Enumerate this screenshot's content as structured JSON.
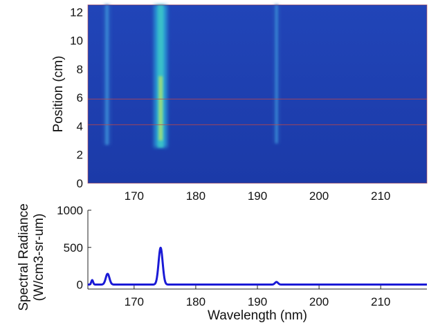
{
  "chart_data": [
    {
      "type": "heatmap",
      "ylabel": "Position (cm)",
      "xlim": [
        162.5,
        217.5
      ],
      "ylim": [
        0,
        12.5
      ],
      "xticks": [
        170,
        180,
        190,
        200,
        210
      ],
      "yticks": [
        0,
        2,
        4,
        6,
        8,
        10,
        12
      ],
      "colors": {
        "background": "#1f3fb0",
        "marker_lines": "#c04848"
      },
      "marker_lines_y": [
        4.1,
        5.9
      ],
      "bright_lines": [
        {
          "x": 165.6,
          "y_from": 2.7,
          "y_to": 12.5,
          "intensity": 0.3
        },
        {
          "x": 174.3,
          "y_from": 2.5,
          "y_to": 12.5,
          "intensity": 1.0
        },
        {
          "x": 193.1,
          "y_from": 2.8,
          "y_to": 12.5,
          "intensity": 0.15
        }
      ]
    },
    {
      "type": "line",
      "xlabel": "Wavelength (nm)",
      "ylabel": "Spectral Radiance",
      "ylabel2": "(W/cm3-sr-um)",
      "xlim": [
        162.5,
        217.5
      ],
      "ylim": [
        -60,
        1000
      ],
      "xticks": [
        170,
        180,
        190,
        200,
        210
      ],
      "yticks": [
        0,
        500,
        1000
      ],
      "line_color": "#1a1ad6",
      "baseline": 0,
      "peaks": [
        {
          "x": 163.2,
          "height": 60,
          "width": 0.15
        },
        {
          "x": 165.7,
          "height": 145,
          "width": 0.3
        },
        {
          "x": 174.3,
          "height": 495,
          "width": 0.33
        },
        {
          "x": 193.1,
          "height": 35,
          "width": 0.25
        }
      ]
    }
  ]
}
